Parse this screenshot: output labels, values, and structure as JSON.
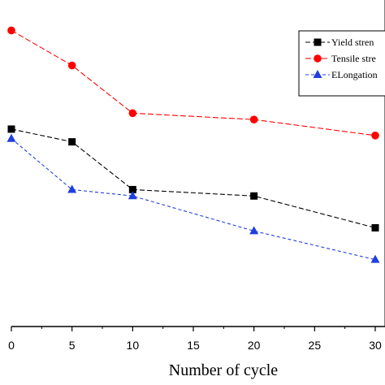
{
  "chart_data": {
    "type": "line",
    "xlabel": "Number of cycle",
    "ylabel": "",
    "x": [
      0,
      5,
      10,
      20,
      30
    ],
    "xticks": [
      "0",
      "5",
      "10",
      "15",
      "20",
      "25",
      "30"
    ],
    "xlim": [
      0,
      30
    ],
    "ylim": [
      0,
      1
    ],
    "grid": false,
    "legend_position": "top-right",
    "series": [
      {
        "name": "Yield stren",
        "marker": "square",
        "color": "#000000",
        "values": [
          0.62,
          0.58,
          0.43,
          0.41,
          0.31
        ]
      },
      {
        "name": "Tensile stre",
        "marker": "circle",
        "color": "#ff0000",
        "values": [
          0.93,
          0.82,
          0.67,
          0.65,
          0.6
        ]
      },
      {
        "name": "ELongation",
        "marker": "triangle",
        "color": "#1f3fe0",
        "values": [
          0.59,
          0.43,
          0.41,
          0.3,
          0.21
        ]
      }
    ]
  }
}
